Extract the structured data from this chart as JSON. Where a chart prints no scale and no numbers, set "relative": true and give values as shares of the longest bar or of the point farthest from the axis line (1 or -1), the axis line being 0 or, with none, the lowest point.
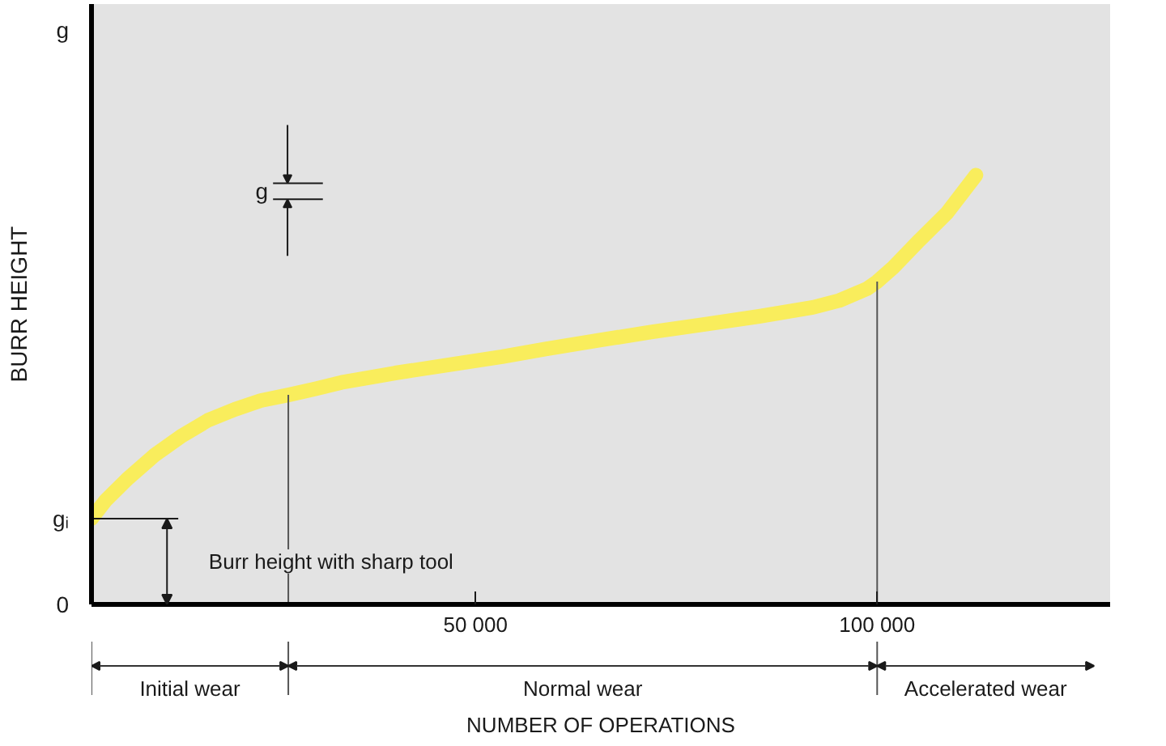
{
  "chart_data": {
    "type": "line",
    "relative": true,
    "xlabel": "NUMBER OF OPERATIONS",
    "ylabel": "BURR HEIGHT",
    "x": [
      2200,
      4000,
      6600,
      10000,
      13300,
      16700,
      20000,
      23300,
      26700,
      30000,
      33300,
      40000,
      46700,
      53300,
      58700,
      65300,
      72000,
      78700,
      85300,
      92000,
      95300,
      98700,
      100000,
      102000,
      105300,
      108700,
      112300
    ],
    "series": [
      {
        "color": "#f9ed5c",
        "values": [
          0.2,
          0.243,
          0.291,
          0.347,
          0.391,
          0.429,
          0.454,
          0.475,
          0.488,
          0.502,
          0.517,
          0.539,
          0.558,
          0.577,
          0.595,
          0.615,
          0.635,
          0.653,
          0.671,
          0.692,
          0.708,
          0.735,
          0.752,
          0.785,
          0.849,
          0.912,
          1.0
        ]
      }
    ],
    "xlim": [
      2200,
      129000
    ],
    "xticks": [
      {
        "value": 50000,
        "label": "50 000"
      },
      {
        "value": 100000,
        "label": "100 000"
      }
    ],
    "ref_lines": [
      {
        "axis": "y",
        "value": 0.2,
        "label": "Burr height with sharp tool"
      },
      {
        "axis": "x",
        "value": 26700
      },
      {
        "axis": "x",
        "value": 100000
      }
    ],
    "annotations": [
      "g",
      "gᵢ",
      "0",
      "g",
      "Initial wear",
      "Normal wear",
      "Accelerated wear"
    ]
  }
}
